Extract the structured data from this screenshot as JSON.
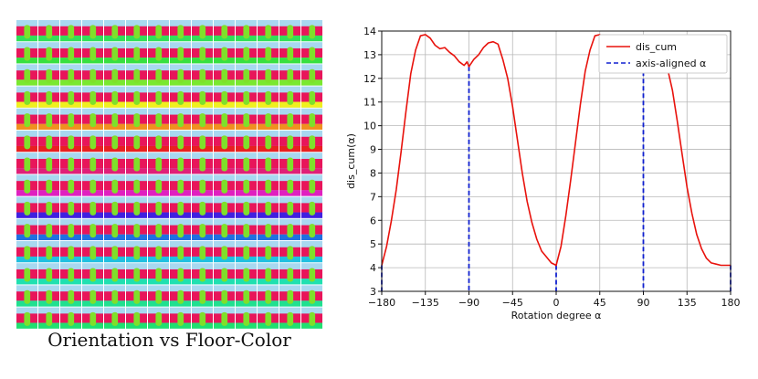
{
  "image_grid": {
    "caption": "Orientation vs Floor-Color",
    "rows": 14,
    "cols": 14,
    "sky_color": "#a8d8f0",
    "wall_color": "#e8155a",
    "object_color": "#7fe02a",
    "floor_colors": [
      "#32e058",
      "#38e040",
      "#7ae830",
      "#f0f01e",
      "#f09020",
      "#e82020",
      "#e02078",
      "#e020c0",
      "#4020e0",
      "#2070e0",
      "#20c0e0",
      "#20e0b0",
      "#20e090",
      "#20e070"
    ]
  },
  "chart_data": {
    "type": "line",
    "xlabel": "Rotation degree α",
    "ylabel": "dis_cum(α)",
    "xlim": [
      -180,
      180
    ],
    "ylim": [
      3,
      14
    ],
    "xticks": [
      -180,
      -135,
      -90,
      -45,
      0,
      45,
      90,
      135,
      180
    ],
    "yticks": [
      3,
      4,
      5,
      6,
      7,
      8,
      9,
      10,
      11,
      12,
      13,
      14
    ],
    "grid": true,
    "legend_position": "top-right",
    "series": [
      {
        "name": "dis_cum",
        "color": "#e8120c",
        "style": "solid",
        "x": [
          -180,
          -175,
          -170,
          -165,
          -160,
          -155,
          -150,
          -145,
          -140,
          -135,
          -130,
          -125,
          -120,
          -115,
          -110,
          -105,
          -100,
          -95,
          -92,
          -90,
          -85,
          -80,
          -75,
          -70,
          -65,
          -60,
          -55,
          -50,
          -45,
          -40,
          -35,
          -30,
          -25,
          -20,
          -15,
          -10,
          -5,
          0,
          5,
          10,
          15,
          20,
          25,
          30,
          35,
          40,
          45,
          50,
          55,
          60,
          65,
          70,
          75,
          80,
          85,
          90,
          95,
          100,
          105,
          110,
          115,
          120,
          125,
          130,
          135,
          140,
          145,
          150,
          155,
          160,
          165,
          170,
          175,
          178,
          180
        ],
        "y": [
          4.1,
          4.9,
          6.0,
          7.3,
          8.9,
          10.6,
          12.2,
          13.2,
          13.8,
          13.85,
          13.7,
          13.4,
          13.25,
          13.3,
          13.1,
          12.95,
          12.7,
          12.55,
          12.7,
          12.5,
          12.8,
          13.0,
          13.3,
          13.5,
          13.55,
          13.45,
          12.8,
          12.0,
          10.8,
          9.4,
          8.0,
          6.8,
          5.9,
          5.2,
          4.7,
          4.45,
          4.2,
          4.1,
          4.9,
          6.2,
          7.7,
          9.3,
          10.9,
          12.3,
          13.2,
          13.8,
          13.85,
          13.7,
          13.4,
          13.1,
          13.0,
          12.95,
          13.1,
          13.0,
          12.8,
          12.6,
          12.7,
          13.0,
          13.2,
          13.0,
          12.4,
          11.5,
          10.2,
          8.8,
          7.4,
          6.3,
          5.4,
          4.8,
          4.4,
          4.2,
          4.15,
          4.1,
          4.1,
          4.1,
          4.1
        ]
      },
      {
        "name": "axis-aligned α",
        "color": "#1020d0",
        "style": "dashed",
        "verticals": [
          -180,
          -90,
          0,
          90,
          180
        ]
      }
    ],
    "legend": [
      "dis_cum",
      "axis-aligned α"
    ]
  }
}
